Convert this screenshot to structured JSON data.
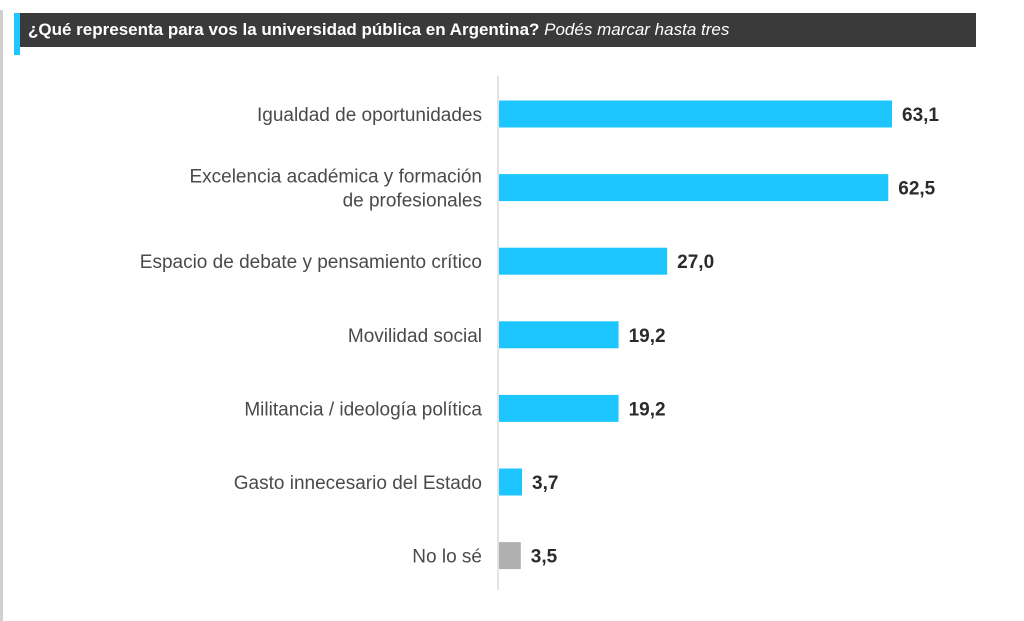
{
  "header": {
    "question": "¿Qué representa para vos la universidad pública en Argentina?",
    "hint": "Podés marcar hasta tres"
  },
  "colors": {
    "bar_default": "#1ec6ff",
    "bar_neutral": "#b0b0b0",
    "header_bg": "#3a3a3a",
    "accent": "#1ec6ff"
  },
  "chart_data": {
    "type": "bar",
    "orientation": "horizontal",
    "title": "¿Qué representa para vos la universidad pública en Argentina?",
    "subtitle": "Podés marcar hasta tres",
    "categories": [
      [
        "Igualdad de oportunidades"
      ],
      [
        "Excelencia académica y formación",
        "de profesionales"
      ],
      [
        "Espacio de debate y pensamiento crítico"
      ],
      [
        "Movilidad social"
      ],
      [
        "Militancia / ideología política"
      ],
      [
        "Gasto innecesario del Estado"
      ],
      [
        "No lo sé"
      ]
    ],
    "values": [
      63.1,
      62.5,
      27.0,
      19.2,
      19.2,
      3.7,
      3.5
    ],
    "value_labels": [
      "63,1",
      "62,5",
      "27,0",
      "19,2",
      "19,2",
      "3,7",
      "3,5"
    ],
    "bar_colors": [
      "#1ec6ff",
      "#1ec6ff",
      "#1ec6ff",
      "#1ec6ff",
      "#1ec6ff",
      "#1ec6ff",
      "#b0b0b0"
    ],
    "xlim": [
      0,
      63.1
    ],
    "grid": false,
    "legend": "none"
  }
}
